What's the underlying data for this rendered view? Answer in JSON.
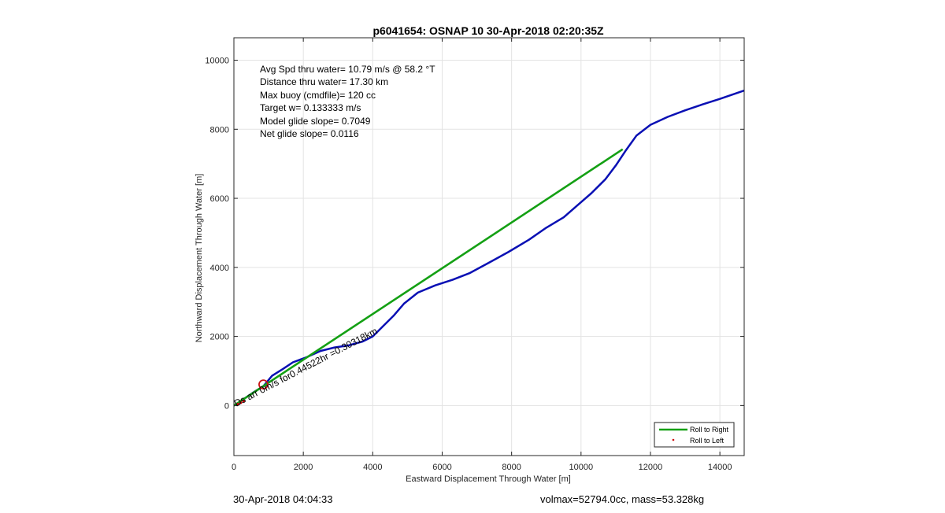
{
  "chart_data": {
    "type": "line",
    "title": "p6041654: OSNAP 10 30-Apr-2018 02:20:35Z",
    "xlabel": "Eastward Displacement Through Water [m]",
    "ylabel": "Northward Displacement Through Water [m]",
    "xlim": [
      0,
      14700
    ],
    "ylim": [
      -1450,
      10650
    ],
    "xticks": [
      0,
      2000,
      4000,
      6000,
      8000,
      10000,
      12000,
      14000
    ],
    "yticks": [
      0,
      2000,
      4000,
      6000,
      8000,
      10000
    ],
    "grid": true,
    "series": [
      {
        "name": "",
        "color": "#0a10b4",
        "x": [
          0,
          120,
          300,
          550,
          850,
          1100,
          1400,
          1700,
          2100,
          2500,
          2900,
          3300,
          3700,
          4000,
          4300,
          4600,
          4900,
          5300,
          5800,
          6300,
          6800,
          7300,
          7900,
          8500,
          9000,
          9500,
          9900,
          10300,
          10700,
          11000,
          11300,
          11600,
          12000,
          12500,
          13000,
          13500,
          14000,
          14700
        ],
        "y": [
          0,
          60,
          200,
          370,
          560,
          860,
          1050,
          1250,
          1400,
          1580,
          1680,
          1740,
          1850,
          2000,
          2300,
          2600,
          2950,
          3270,
          3480,
          3640,
          3840,
          4110,
          4440,
          4800,
          5150,
          5450,
          5800,
          6150,
          6550,
          6950,
          7400,
          7820,
          8130,
          8360,
          8550,
          8720,
          8880,
          9120
        ]
      },
      {
        "name": "Roll to Right",
        "color": "#14a014",
        "x": [
          0,
          11200
        ],
        "y": [
          0,
          7420
        ]
      }
    ],
    "markers": [
      {
        "name": "Roll to Left",
        "color": "#cc0000",
        "x": [
          120,
          200,
          280
        ],
        "y": [
          40,
          80,
          130
        ]
      }
    ],
    "circle_marker": {
      "x": 850,
      "y": 610,
      "color": "#c81414"
    },
    "annotations": [
      "Avg Spd thru water= 10.79 m/s @  58.2 °T",
      "Distance thru water= 17.30 km",
      "Max buoy (cmdfile)= 120 cc",
      "Target w= 0.133333 m/s",
      "Model glide slope= 0.7049",
      "Net glide slope= 0.0116"
    ],
    "segment_label": "Ds arr 0m/s for0.44522hr =0.30318km",
    "legend": {
      "placement": "bottom-right",
      "entries": [
        {
          "label": "Roll to Right",
          "kind": "line",
          "color": "#14a014"
        },
        {
          "label": "Roll to Left",
          "kind": "dot",
          "color": "#cc0000"
        }
      ]
    }
  },
  "footer": {
    "left_text": "30-Apr-2018 04:04:33",
    "right_text": "volmax=52794.0cc, mass=53.328kg"
  }
}
